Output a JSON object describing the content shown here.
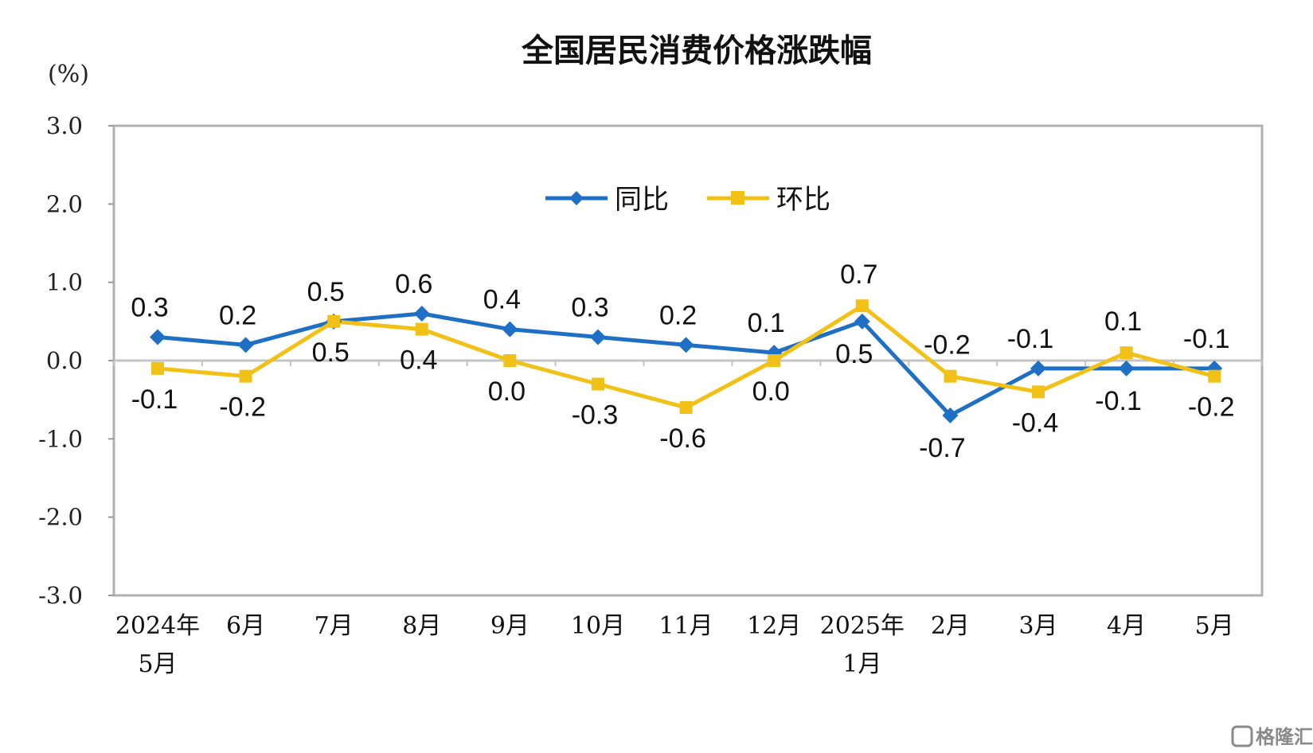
{
  "chart_data": {
    "type": "line",
    "title": "全国居民消费价格涨跌幅",
    "unit_label": "(%)",
    "ylim": [
      -3.0,
      3.0
    ],
    "yticks": [
      "3.0",
      "2.0",
      "1.0",
      "0.0",
      "-1.0",
      "-2.0",
      "-3.0"
    ],
    "categories": [
      [
        "2024年",
        "5月"
      ],
      [
        "6月"
      ],
      [
        "7月"
      ],
      [
        "8月"
      ],
      [
        "9月"
      ],
      [
        "10月"
      ],
      [
        "11月"
      ],
      [
        "12月"
      ],
      [
        "2025年",
        "1月"
      ],
      [
        "2月"
      ],
      [
        "3月"
      ],
      [
        "4月"
      ],
      [
        "5月"
      ]
    ],
    "legend_position": "top-center",
    "series": [
      {
        "name": "同比",
        "color": "#1f6fc5",
        "marker": "diamond",
        "values": [
          0.3,
          0.2,
          0.5,
          0.6,
          0.4,
          0.3,
          0.2,
          0.1,
          0.5,
          -0.7,
          -0.1,
          -0.1,
          -0.1
        ],
        "labels": [
          "0.3",
          "0.2",
          "0.5",
          "0.6",
          "0.4",
          "0.3",
          "0.2",
          "0.1",
          "0.5",
          "-0.7",
          "-0.1",
          "-0.1",
          "-0.1"
        ]
      },
      {
        "name": "环比",
        "color": "#f2c118",
        "marker": "square",
        "values": [
          -0.1,
          -0.2,
          0.5,
          0.4,
          0.0,
          -0.3,
          -0.6,
          0.0,
          0.7,
          -0.2,
          -0.4,
          0.1,
          -0.2
        ],
        "labels": [
          "-0.1",
          "-0.2",
          "0.5",
          "0.4",
          "0.0",
          "-0.3",
          "-0.6",
          "0.0",
          "0.7",
          "-0.2",
          "-0.4",
          "0.1",
          "-0.2"
        ]
      }
    ]
  },
  "watermark": "格隆汇"
}
